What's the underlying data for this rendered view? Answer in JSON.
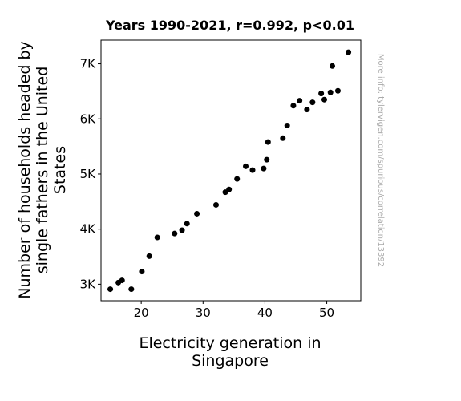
{
  "chart_data": {
    "type": "scatter",
    "title": "Years 1990-2021, r=0.992, p<0.01",
    "xlabel_lines": [
      "Electricity generation in",
      "Singapore"
    ],
    "ylabel_lines": [
      "Number of households headed by",
      "single fathers in the United",
      "States"
    ],
    "side_note": "More info: tylervigen.com/spurious/correlation/13392",
    "xlim": [
      13.5,
      55.5
    ],
    "ylim": [
      2700,
      7430
    ],
    "x_ticks": [
      {
        "value": 20,
        "label": "20"
      },
      {
        "value": 30,
        "label": "30"
      },
      {
        "value": 40,
        "label": "40"
      },
      {
        "value": 50,
        "label": "50"
      }
    ],
    "y_ticks": [
      {
        "value": 3000,
        "label": "3K"
      },
      {
        "value": 4000,
        "label": "4K"
      },
      {
        "value": 5000,
        "label": "5K"
      },
      {
        "value": 6000,
        "label": "6K"
      },
      {
        "value": 7000,
        "label": "7K"
      }
    ],
    "marker_color": "#000000",
    "grid": false,
    "points": [
      {
        "x": 15.0,
        "y": 2910
      },
      {
        "x": 16.3,
        "y": 3030
      },
      {
        "x": 16.9,
        "y": 3070
      },
      {
        "x": 18.4,
        "y": 2910
      },
      {
        "x": 20.1,
        "y": 3230
      },
      {
        "x": 21.3,
        "y": 3510
      },
      {
        "x": 22.6,
        "y": 3850
      },
      {
        "x": 25.4,
        "y": 3920
      },
      {
        "x": 26.6,
        "y": 3980
      },
      {
        "x": 27.4,
        "y": 4100
      },
      {
        "x": 29.0,
        "y": 4280
      },
      {
        "x": 32.1,
        "y": 4440
      },
      {
        "x": 33.6,
        "y": 4670
      },
      {
        "x": 34.2,
        "y": 4720
      },
      {
        "x": 35.5,
        "y": 4910
      },
      {
        "x": 36.9,
        "y": 5140
      },
      {
        "x": 38.0,
        "y": 5070
      },
      {
        "x": 39.8,
        "y": 5100
      },
      {
        "x": 40.3,
        "y": 5260
      },
      {
        "x": 40.5,
        "y": 5580
      },
      {
        "x": 42.9,
        "y": 5650
      },
      {
        "x": 43.6,
        "y": 5880
      },
      {
        "x": 44.6,
        "y": 6240
      },
      {
        "x": 45.6,
        "y": 6330
      },
      {
        "x": 46.8,
        "y": 6170
      },
      {
        "x": 47.7,
        "y": 6300
      },
      {
        "x": 49.1,
        "y": 6460
      },
      {
        "x": 49.6,
        "y": 6350
      },
      {
        "x": 50.6,
        "y": 6480
      },
      {
        "x": 50.9,
        "y": 6960
      },
      {
        "x": 51.8,
        "y": 6510
      },
      {
        "x": 53.5,
        "y": 7210
      }
    ]
  }
}
